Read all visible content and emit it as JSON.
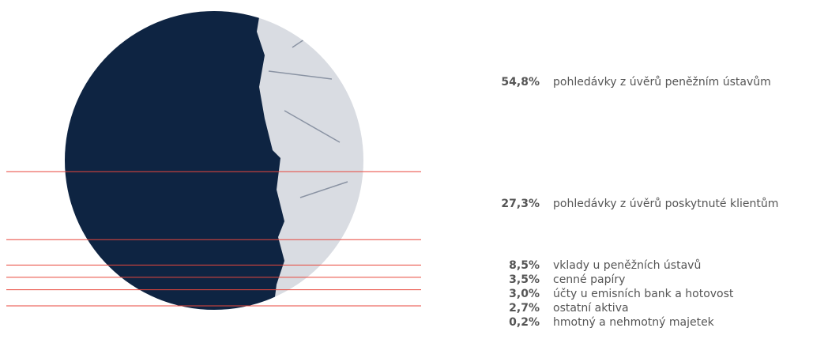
{
  "chart_data": {
    "type": "circle-slices",
    "categories": [
      "pohledávky z úvěrů peněžním ústavům",
      "pohledávky z úvěrů poskytnuté klientům",
      "vklady u peněžních ústavů",
      "cenné papíry",
      "účty u emisních bank a hotovost",
      "ostatní aktiva",
      "hmotný a nehmotný majetek"
    ],
    "values": [
      54.8,
      27.3,
      8.5,
      3.5,
      3.0,
      2.7,
      0.2
    ],
    "value_labels": [
      "54,8%",
      "27,3%",
      "8,5%",
      "3,5%",
      "3,0%",
      "2,7%",
      "0,2%"
    ],
    "color": "#e8473c"
  }
}
